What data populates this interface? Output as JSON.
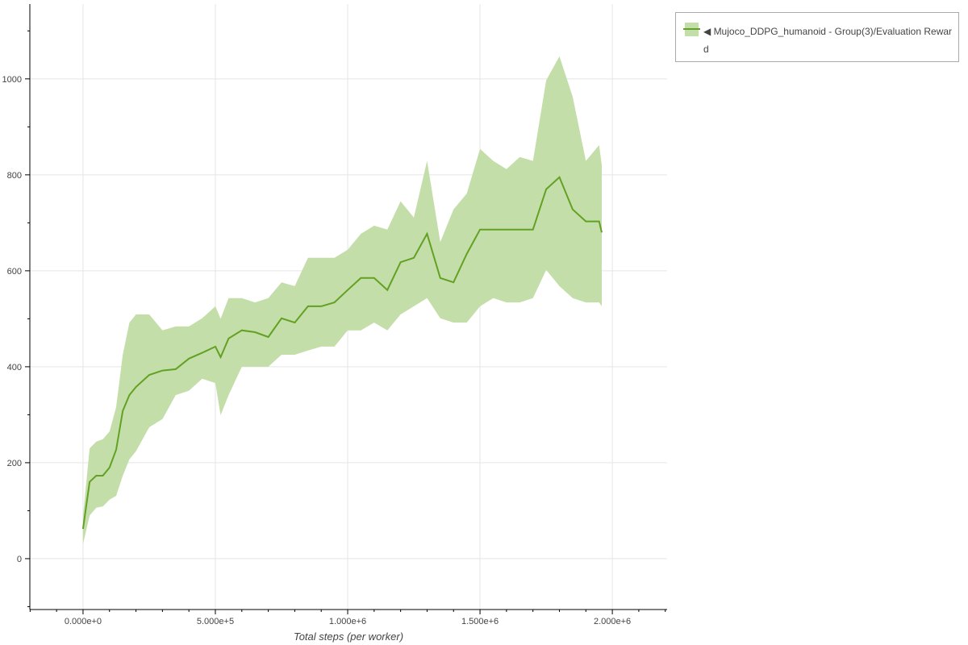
{
  "chart_data": {
    "type": "line",
    "title": "",
    "xlabel": "Total steps (per worker)",
    "ylabel": "",
    "xlim": [
      -201000,
      2207000
    ],
    "ylim": [
      -106,
      1156
    ],
    "x_ticks": [
      "0.000e+0",
      "5.000e+5",
      "1.000e+6",
      "1.500e+6",
      "2.000e+6"
    ],
    "x_tick_values": [
      0,
      500000,
      1000000,
      1500000,
      2000000
    ],
    "y_ticks": [
      "0",
      "200",
      "400",
      "600",
      "800",
      "1000"
    ],
    "y_tick_values": [
      0,
      200,
      400,
      600,
      800,
      1000
    ],
    "grid": true,
    "legend_position": "right-outside",
    "colors": {
      "line": "#62a122",
      "band": "#c3dea9"
    },
    "series": [
      {
        "name": "◀ Mujoco_DDPG_humanoid - Group(3)/Evaluation Reward",
        "x": [
          0,
          25000,
          50000,
          75000,
          100000,
          125000,
          150000,
          175000,
          200000,
          250000,
          300000,
          350000,
          400000,
          450000,
          500000,
          520000,
          550000,
          600000,
          650000,
          700000,
          750000,
          800000,
          850000,
          900000,
          950000,
          1000000,
          1050000,
          1100000,
          1150000,
          1200000,
          1250000,
          1300000,
          1350000,
          1400000,
          1450000,
          1500000,
          1550000,
          1600000,
          1650000,
          1700000,
          1750000,
          1800000,
          1850000,
          1900000,
          1950000,
          1960000
        ],
        "mean": [
          62,
          160,
          173,
          173,
          190,
          227,
          308,
          341,
          358,
          383,
          392,
          395,
          417,
          429,
          442,
          420,
          459,
          476,
          472,
          462,
          501,
          492,
          526,
          526,
          534,
          560,
          585,
          585,
          560,
          618,
          627,
          677,
          585,
          576,
          635,
          686,
          686,
          686,
          686,
          686,
          770,
          795,
          728,
          703,
          703,
          680
        ],
        "upper": [
          89,
          230,
          244,
          249,
          265,
          316,
          425,
          492,
          509,
          509,
          476,
          484,
          484,
          501,
          526,
          500,
          543,
          543,
          534,
          543,
          576,
          568,
          627,
          627,
          627,
          644,
          677,
          694,
          686,
          745,
          711,
          829,
          660,
          728,
          761,
          854,
          829,
          812,
          837,
          829,
          997,
          1047,
          963,
          829,
          862,
          820
        ],
        "lower": [
          30,
          90,
          106,
          109,
          123,
          131,
          173,
          207,
          224,
          274,
          291,
          341,
          350,
          375,
          366,
          299,
          341,
          400,
          400,
          400,
          425,
          425,
          434,
          442,
          442,
          476,
          476,
          492,
          476,
          509,
          526,
          543,
          501,
          492,
          492,
          526,
          543,
          534,
          534,
          543,
          602,
          568,
          543,
          534,
          534,
          526
        ]
      }
    ]
  },
  "legend": {
    "label": "◀ Mujoco_DDPG_humanoid - Group(3)/Evaluation Reward"
  }
}
